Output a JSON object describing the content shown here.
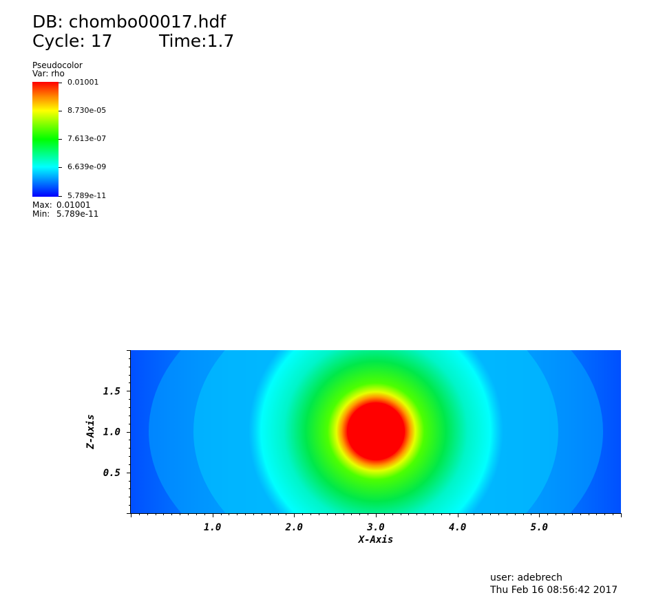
{
  "header": {
    "db": "DB: chombo00017.hdf",
    "cycle": "Cycle: 17",
    "time": "Time:1.7"
  },
  "legend": {
    "plot_type": "Pseudocolor",
    "variable": "Var: rho",
    "tick_labels": [
      "0.01001",
      "8.730e-05",
      "7.613e-07",
      "6.639e-09",
      "5.789e-11"
    ],
    "max_label": "Max:",
    "max_value": "0.01001",
    "min_label": "Min:",
    "min_value": "5.789e-11",
    "colors": [
      "#ff0000",
      "#ffff00",
      "#00ff00",
      "#00ffff",
      "#0000ff"
    ]
  },
  "plot": {
    "xlabel": "X-Axis",
    "ylabel": "Z-Axis",
    "x_range": [
      0,
      6
    ],
    "y_range": [
      0,
      2
    ],
    "x_ticks": [
      "1.0",
      "2.0",
      "3.0",
      "4.0",
      "5.0"
    ],
    "y_ticks": [
      "0.5",
      "1.0",
      "1.5"
    ],
    "center": {
      "x": 3.0,
      "z": 1.0
    },
    "scale": "log",
    "colors": {
      "background_blue": "#0055ff",
      "cyan": "#00ffff",
      "green": "#00e000",
      "red": "#ff0000"
    }
  },
  "footer": {
    "user": "user: adebrech",
    "datetime": "Thu Feb 16 08:56:42 2017"
  }
}
